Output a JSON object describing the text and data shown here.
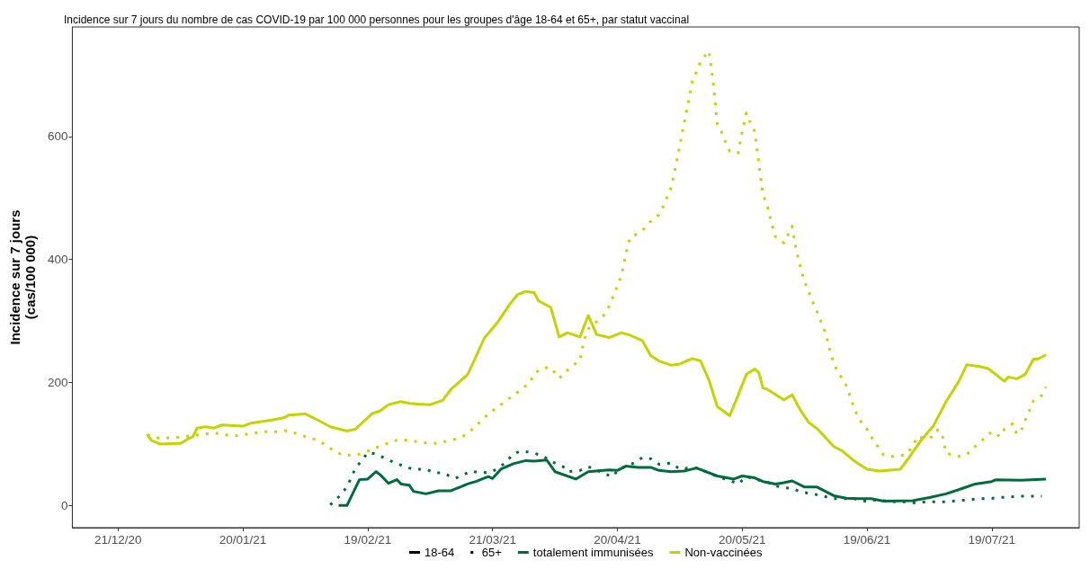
{
  "chart_data": {
    "type": "line",
    "title": "Incidence sur 7 jours du nombre de cas COVID-19 par 100 000 personnes pour les groupes d'âge 18-64 et 65+, par statut vaccinal",
    "ylabel": "Incidence sur 7 jours\n(cas/100 000)",
    "xlim": [
      "2020-12-10",
      "2021-08-09"
    ],
    "xticks": [
      {
        "value": "2020-12-21",
        "label": "21/12/20"
      },
      {
        "value": "2021-01-20",
        "label": "20/01/21"
      },
      {
        "value": "2021-02-19",
        "label": "19/02/21"
      },
      {
        "value": "2021-03-21",
        "label": "21/03/21"
      },
      {
        "value": "2021-04-20",
        "label": "20/04/21"
      },
      {
        "value": "2021-05-20",
        "label": "20/05/21"
      },
      {
        "value": "2021-06-19",
        "label": "19/06/21"
      },
      {
        "value": "2021-07-19",
        "label": "19/07/21"
      }
    ],
    "ylim": [
      -36,
      778
    ],
    "yticks": [
      0,
      200,
      400,
      600
    ],
    "grid": false,
    "legend": "bottom",
    "marker": "none",
    "series": [
      {
        "name": "18-64",
        "color": "#000000",
        "line_style": "solid"
      },
      {
        "name": "65+",
        "color": "#000000",
        "line_style": "dotted"
      },
      {
        "name": "totalement immunisées",
        "color": "#006b3c",
        "line_style": "solid"
      },
      {
        "name": "Non-vaccinées",
        "color": "#c3d400",
        "line_style": "solid"
      },
      {
        "color": "#c3d400",
        "line_style": "solid",
        "x": [
          "2020-12-28",
          "2020-12-29",
          "2020-12-31",
          "2021-01-05",
          "2021-01-07",
          "2021-01-08",
          "2021-01-09",
          "2021-01-11",
          "2021-01-13",
          "2021-01-15",
          "2021-01-20",
          "2021-01-22",
          "2021-01-27",
          "2021-01-30",
          "2021-01-31",
          "2021-02-04",
          "2021-02-07",
          "2021-02-10",
          "2021-02-14",
          "2021-02-16",
          "2021-02-20",
          "2021-02-22",
          "2021-02-24",
          "2021-02-27",
          "2021-03-01",
          "2021-03-03",
          "2021-03-06",
          "2021-03-09",
          "2021-03-11",
          "2021-03-15",
          "2021-03-17",
          "2021-03-19",
          "2021-03-22",
          "2021-03-25",
          "2021-03-27",
          "2021-03-29",
          "2021-03-31",
          "2021-04-01",
          "2021-04-04",
          "2021-04-06",
          "2021-04-08",
          "2021-04-11",
          "2021-04-13",
          "2021-04-15",
          "2021-04-18",
          "2021-04-21",
          "2021-04-23",
          "2021-04-26",
          "2021-04-28",
          "2021-04-30",
          "2021-05-03",
          "2021-05-05",
          "2021-05-08",
          "2021-05-10",
          "2021-05-12",
          "2021-05-14",
          "2021-05-17",
          "2021-05-19",
          "2021-05-21",
          "2021-05-23",
          "2021-05-24",
          "2021-05-25",
          "2021-05-26",
          "2021-05-30",
          "2021-06-01",
          "2021-06-03",
          "2021-06-05",
          "2021-06-07",
          "2021-06-11",
          "2021-06-13",
          "2021-06-16",
          "2021-06-19",
          "2021-06-22",
          "2021-06-24",
          "2021-06-27",
          "2021-06-29",
          "2021-07-02",
          "2021-07-05",
          "2021-07-08",
          "2021-07-11",
          "2021-07-13",
          "2021-07-16",
          "2021-07-18",
          "2021-07-20",
          "2021-07-22",
          "2021-07-23",
          "2021-07-25",
          "2021-07-27",
          "2021-07-29",
          "2021-07-30",
          "2021-08-01"
        ],
        "values": [
          116,
          106,
          100,
          101,
          109,
          112,
          126,
          128,
          126,
          131,
          129,
          134,
          139,
          143,
          147,
          149,
          139,
          128,
          121,
          124,
          149,
          154,
          164,
          169,
          166,
          165,
          164,
          171,
          189,
          213,
          242,
          272,
          296,
          326,
          343,
          348,
          346,
          333,
          322,
          274,
          281,
          274,
          309,
          278,
          273,
          281,
          277,
          268,
          244,
          235,
          228,
          230,
          239,
          235,
          204,
          161,
          146,
          179,
          213,
          222,
          216,
          191,
          189,
          172,
          180,
          155,
          135,
          125,
          96,
          89,
          72,
          59,
          56,
          57,
          59,
          77,
          106,
          130,
          169,
          201,
          229,
          226,
          223,
          213,
          202,
          209,
          206,
          213,
          238,
          238,
          245
        ]
      },
      {
        "color": "#c3d400",
        "line_style": "dotted",
        "x": [
          "2020-12-28",
          "2020-12-31",
          "2021-01-02",
          "2021-01-05",
          "2021-01-07",
          "2021-01-13",
          "2021-01-16",
          "2021-01-18",
          "2021-01-21",
          "2021-01-23",
          "2021-01-25",
          "2021-01-28",
          "2021-01-30",
          "2021-02-02",
          "2021-02-04",
          "2021-02-07",
          "2021-02-09",
          "2021-02-11",
          "2021-02-13",
          "2021-02-16",
          "2021-02-18",
          "2021-02-21",
          "2021-02-23",
          "2021-02-25",
          "2021-02-27",
          "2021-03-02",
          "2021-03-04",
          "2021-03-07",
          "2021-03-09",
          "2021-03-12",
          "2021-03-14",
          "2021-03-16",
          "2021-03-18",
          "2021-03-20",
          "2021-03-22",
          "2021-03-24",
          "2021-03-26",
          "2021-03-28",
          "2021-03-30",
          "2021-03-31",
          "2021-04-02",
          "2021-04-04",
          "2021-04-06",
          "2021-04-07",
          "2021-04-09",
          "2021-04-11",
          "2021-04-12",
          "2021-04-13",
          "2021-04-15",
          "2021-04-17",
          "2021-04-18",
          "2021-04-19",
          "2021-04-20",
          "2021-04-21",
          "2021-04-22",
          "2021-04-23",
          "2021-04-26",
          "2021-04-28",
          "2021-04-30",
          "2021-05-01",
          "2021-05-03",
          "2021-05-04",
          "2021-05-05",
          "2021-05-06",
          "2021-05-07",
          "2021-05-08",
          "2021-05-09",
          "2021-05-10",
          "2021-05-12",
          "2021-05-13",
          "2021-05-14",
          "2021-05-15",
          "2021-05-16",
          "2021-05-17",
          "2021-05-19",
          "2021-05-20",
          "2021-05-21",
          "2021-05-22",
          "2021-05-23",
          "2021-05-24",
          "2021-05-25",
          "2021-05-26",
          "2021-05-27",
          "2021-05-28",
          "2021-05-30",
          "2021-06-01",
          "2021-06-02",
          "2021-06-03",
          "2021-06-04",
          "2021-06-06",
          "2021-06-07",
          "2021-06-09",
          "2021-06-10",
          "2021-06-11",
          "2021-06-12",
          "2021-06-14",
          "2021-06-16",
          "2021-06-17",
          "2021-06-19",
          "2021-06-20",
          "2021-06-22",
          "2021-06-23",
          "2021-06-25",
          "2021-06-28",
          "2021-06-30",
          "2021-07-01",
          "2021-07-03",
          "2021-07-05",
          "2021-07-06",
          "2021-07-07",
          "2021-07-08",
          "2021-07-11",
          "2021-07-13",
          "2021-07-15",
          "2021-07-17",
          "2021-07-19",
          "2021-07-21",
          "2021-07-22",
          "2021-07-24",
          "2021-07-25",
          "2021-07-26",
          "2021-07-27",
          "2021-07-28",
          "2021-07-29",
          "2021-07-31",
          "2021-08-01"
        ],
        "values": [
          115,
          109,
          110,
          111,
          113,
          118,
          115,
          113,
          116,
          118,
          120,
          120,
          122,
          117,
          112,
          106,
          98,
          88,
          82,
          82,
          85,
          94,
          99,
          105,
          107,
          105,
          102,
          101,
          103,
          108,
          113,
          123,
          136,
          149,
          159,
          169,
          179,
          189,
          200,
          214,
          224,
          224,
          207,
          213,
          227,
          235,
          269,
          287,
          299,
          311,
          324,
          340,
          357,
          374,
          408,
          435,
          447,
          462,
          473,
          486,
          518,
          551,
          585,
          620,
          654,
          690,
          705,
          722,
          739,
          690,
          620,
          608,
          591,
          576,
          573,
          608,
          638,
          622,
          608,
          556,
          505,
          488,
          460,
          437,
          427,
          454,
          415,
          387,
          364,
          330,
          315,
          281,
          255,
          230,
          218,
          195,
          157,
          141,
          124,
          112,
          92,
          82,
          80,
          82,
          95,
          112,
          109,
          112,
          123,
          117,
          85,
          80,
          83,
          96,
          108,
          120,
          112,
          124,
          133,
          116,
          121,
          138,
          154,
          170,
          179,
          193
        ]
      },
      {
        "color": "#006b3c",
        "line_style": "solid",
        "x": [
          "2021-02-12",
          "2021-02-14",
          "2021-02-17",
          "2021-02-19",
          "2021-02-21",
          "2021-02-22",
          "2021-02-24",
          "2021-02-26",
          "2021-02-27",
          "2021-03-01",
          "2021-03-02",
          "2021-03-05",
          "2021-03-08",
          "2021-03-11",
          "2021-03-15",
          "2021-03-17",
          "2021-03-20",
          "2021-03-21",
          "2021-03-23",
          "2021-03-26",
          "2021-03-29",
          "2021-03-31",
          "2021-04-03",
          "2021-04-05",
          "2021-04-10",
          "2021-04-13",
          "2021-04-18",
          "2021-04-20",
          "2021-04-22",
          "2021-04-25",
          "2021-04-28",
          "2021-04-30",
          "2021-05-03",
          "2021-05-06",
          "2021-05-09",
          "2021-05-14",
          "2021-05-18",
          "2021-05-20",
          "2021-05-23",
          "2021-05-25",
          "2021-05-28",
          "2021-05-30",
          "2021-06-01",
          "2021-06-04",
          "2021-06-07",
          "2021-06-11",
          "2021-06-14",
          "2021-06-17",
          "2021-06-20",
          "2021-06-23",
          "2021-06-30",
          "2021-07-04",
          "2021-07-08",
          "2021-07-12",
          "2021-07-15",
          "2021-07-19",
          "2021-07-20",
          "2021-07-26",
          "2021-08-01"
        ],
        "values": [
          0,
          0,
          42,
          43,
          55,
          50,
          36,
          42,
          35,
          33,
          23,
          19,
          24,
          24,
          35,
          39,
          47,
          44,
          59,
          68,
          73,
          72,
          74,
          55,
          43,
          55,
          58,
          57,
          64,
          62,
          62,
          57,
          55,
          56,
          61,
          48,
          43,
          48,
          45,
          39,
          35,
          37,
          40,
          30,
          30,
          16,
          12,
          11,
          11,
          7,
          8,
          13,
          19,
          28,
          35,
          39,
          42,
          41,
          43
        ]
      },
      {
        "color": "#006b3c",
        "line_style": "dotted",
        "x": [
          "2021-02-10",
          "2021-02-12",
          "2021-02-14",
          "2021-02-15",
          "2021-02-16",
          "2021-02-18",
          "2021-02-19",
          "2021-02-21",
          "2021-02-23",
          "2021-02-25",
          "2021-02-28",
          "2021-03-02",
          "2021-03-05",
          "2021-03-07",
          "2021-03-09",
          "2021-03-12",
          "2021-03-14",
          "2021-03-16",
          "2021-03-18",
          "2021-03-21",
          "2021-03-24",
          "2021-03-26",
          "2021-03-28",
          "2021-03-31",
          "2021-04-02",
          "2021-04-04",
          "2021-04-07",
          "2021-04-08",
          "2021-04-11",
          "2021-04-13",
          "2021-04-15",
          "2021-04-17",
          "2021-04-19",
          "2021-04-20",
          "2021-04-22",
          "2021-04-24",
          "2021-04-26",
          "2021-04-28",
          "2021-04-30",
          "2021-05-03",
          "2021-05-05",
          "2021-05-07",
          "2021-05-09",
          "2021-05-12",
          "2021-05-14",
          "2021-05-17",
          "2021-05-19",
          "2021-05-21",
          "2021-05-23",
          "2021-05-26",
          "2021-05-28",
          "2021-05-30",
          "2021-06-01",
          "2021-06-03",
          "2021-06-06",
          "2021-06-08",
          "2021-06-11",
          "2021-06-16",
          "2021-06-18",
          "2021-06-21",
          "2021-06-23",
          "2021-06-26",
          "2021-06-28",
          "2021-07-01",
          "2021-07-03",
          "2021-07-08",
          "2021-07-11",
          "2021-07-13",
          "2021-07-16",
          "2021-07-18",
          "2021-07-21",
          "2021-07-23",
          "2021-07-26",
          "2021-07-31"
        ],
        "values": [
          1,
          14,
          30,
          45,
          60,
          77,
          86,
          84,
          77,
          71,
          63,
          59,
          59,
          53,
          53,
          44,
          50,
          56,
          53,
          55,
          69,
          84,
          89,
          85,
          81,
          72,
          63,
          55,
          57,
          63,
          58,
          51,
          47,
          57,
          64,
          69,
          78,
          76,
          67,
          69,
          59,
          61,
          61,
          53,
          47,
          41,
          35,
          47,
          43,
          38,
          32,
          29,
          28,
          22,
          19,
          16,
          11,
          11,
          7,
          9,
          8,
          6,
          6,
          4,
          6,
          6,
          8,
          9,
          11,
          11,
          13,
          14,
          15,
          15
        ]
      }
    ]
  }
}
